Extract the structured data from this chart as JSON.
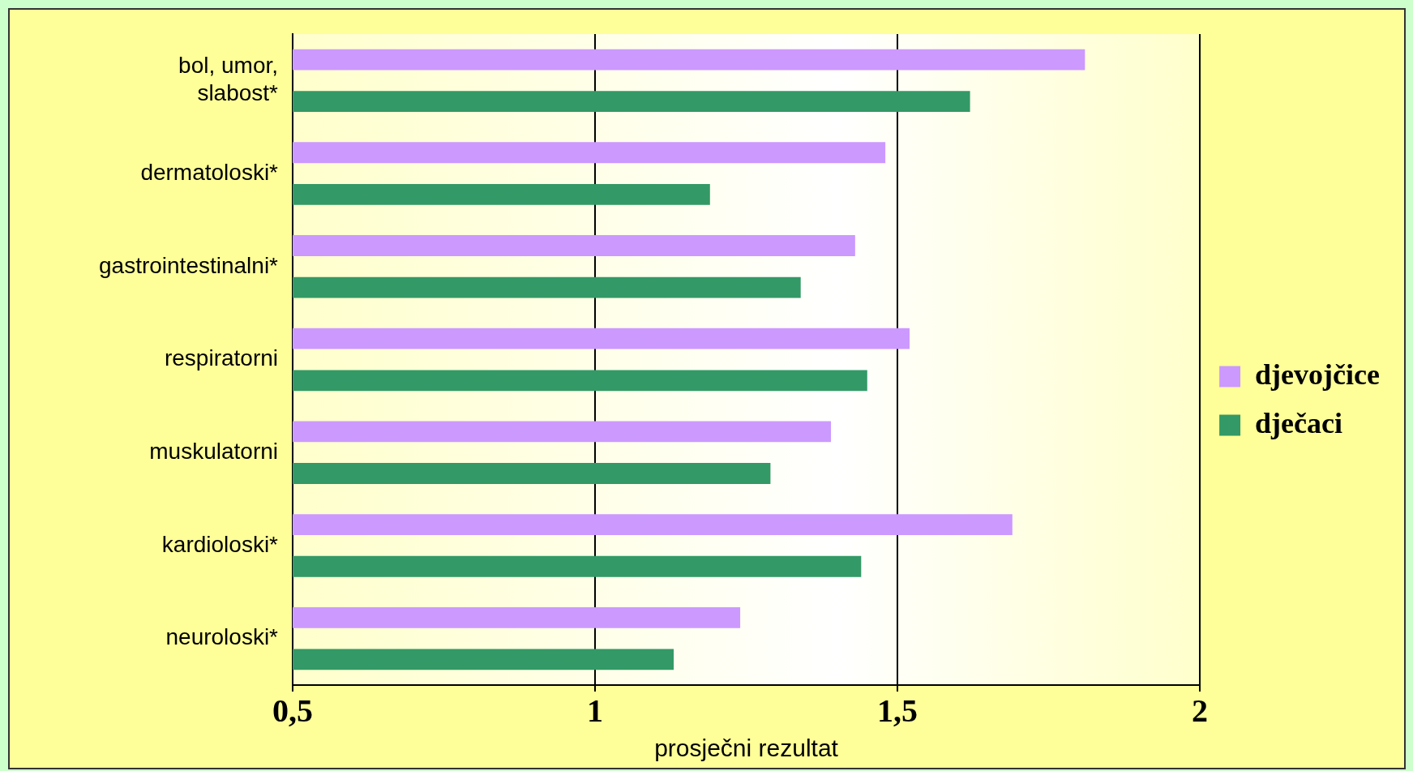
{
  "chart_data": {
    "type": "bar",
    "orientation": "horizontal",
    "xlabel": "prosječni rezultat",
    "categories": [
      [
        "bol, umor,",
        "slabost*"
      ],
      "dermatoloski*",
      "gastrointestinalni*",
      "respiratorni",
      "muskulatorni",
      "kardioloski*",
      "neuroloski*"
    ],
    "series": [
      {
        "name": "djevojčice",
        "color": "#cc99ff",
        "values": [
          1.81,
          1.48,
          1.43,
          1.52,
          1.39,
          1.69,
          1.24
        ]
      },
      {
        "name": "dječaci",
        "color": "#339966",
        "values": [
          1.62,
          1.19,
          1.34,
          1.45,
          1.29,
          1.44,
          1.13
        ]
      }
    ],
    "xlim": [
      0.5,
      2
    ],
    "xticks": [
      {
        "value": 0.5,
        "label": "0,5"
      },
      {
        "value": 1,
        "label": "1"
      },
      {
        "value": 1.5,
        "label": "1,5"
      },
      {
        "value": 2,
        "label": "2"
      }
    ],
    "grid": "x",
    "legend": "right"
  }
}
